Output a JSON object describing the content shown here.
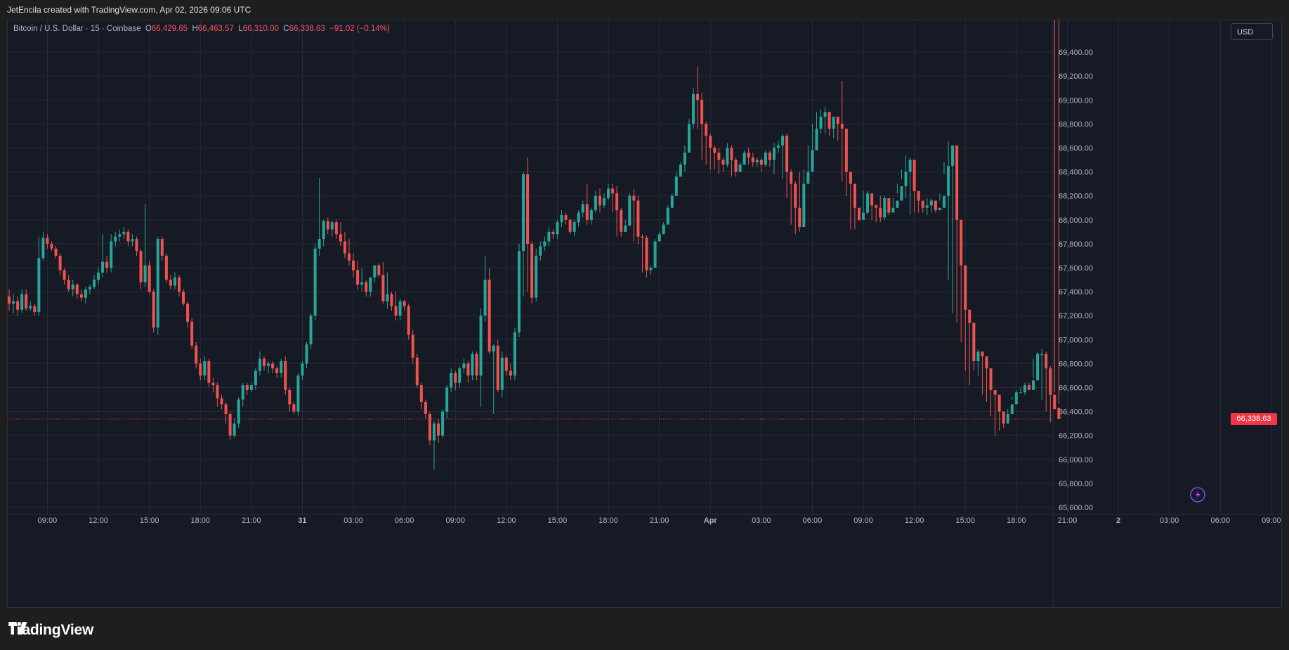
{
  "caption": "JetEncila created with TradingView.com, Apr 02, 2026 09:06 UTC",
  "legend": {
    "symbol": "Bitcoin / U.S. Dollar · 15 · Coinbase",
    "o_label": "O",
    "o_value": "66,429.65",
    "h_label": "H",
    "h_value": "66,463.57",
    "l_label": "L",
    "l_value": "66,310.00",
    "c_label": "C",
    "c_value": "66,338.63",
    "change": "−91.02 (−0.14%)"
  },
  "currency_button": "USD",
  "last_price_label": "66,338.63",
  "brand": "TradingView",
  "colors": {
    "up": "#26a69a",
    "down": "#ef5350",
    "background": "#161a25",
    "grid": "#262b37",
    "last_price": "#f23645"
  },
  "chart_data": {
    "type": "candlestick",
    "title": "Bitcoin / U.S. Dollar · 15 · Coinbase",
    "ylim": [
      65600,
      69600
    ],
    "y_ticks": [
      65600,
      65800,
      66000,
      66200,
      66400,
      66600,
      66800,
      67000,
      67200,
      67400,
      67600,
      67800,
      68000,
      68200,
      68400,
      68600,
      68800,
      69000,
      69200,
      69400
    ],
    "y_tick_labels": [
      "65,600.00",
      "65,800.00",
      "66,000.00",
      "66,200.00",
      "66,400.00",
      "66,600.00",
      "66,800.00",
      "67,000.00",
      "67,200.00",
      "67,400.00",
      "67,600.00",
      "67,800.00",
      "68,000.00",
      "68,200.00",
      "68,400.00",
      "68,600.00",
      "68,800.00",
      "69,000.00",
      "69,200.00",
      "69,400.00"
    ],
    "x_tick_labels": [
      "09:00",
      "12:00",
      "15:00",
      "18:00",
      "21:00",
      "31",
      "03:00",
      "06:00",
      "09:00",
      "12:00",
      "15:00",
      "18:00",
      "21:00",
      "Apr",
      "03:00",
      "06:00",
      "09:00",
      "12:00",
      "15:00",
      "18:00",
      "21:00",
      "2",
      "03:00",
      "06:00",
      "09:00"
    ],
    "x_tick_bar_index": [
      9,
      21,
      33,
      45,
      57,
      69,
      81,
      93,
      105,
      117,
      129,
      141,
      153,
      165,
      177,
      189,
      201,
      213,
      225,
      237,
      249,
      261,
      273,
      285,
      297
    ],
    "bar_interval": "15m",
    "last_price": 66338.63,
    "closes": [
      67300,
      67320,
      67250,
      67380,
      67260,
      67280,
      67230,
      67680,
      67850,
      67800,
      67760,
      67700,
      67580,
      67500,
      67420,
      67460,
      67380,
      67350,
      67420,
      67440,
      67500,
      67560,
      67650,
      67600,
      67820,
      67860,
      67880,
      67900,
      67820,
      67840,
      67740,
      67480,
      67620,
      67400,
      67100,
      67840,
      67700,
      67500,
      67450,
      67520,
      67400,
      67300,
      67150,
      66950,
      66800,
      66700,
      66820,
      66640,
      66620,
      66510,
      66460,
      66380,
      66200,
      66300,
      66500,
      66620,
      66580,
      66620,
      66740,
      66840,
      66780,
      66800,
      66760,
      66720,
      66820,
      66580,
      66460,
      66400,
      66700,
      66800,
      66960,
      67200,
      67760,
      67840,
      67990,
      67920,
      67980,
      67880,
      67820,
      67720,
      67660,
      67580,
      67460,
      67480,
      67400,
      67520,
      67620,
      67540,
      67320,
      67380,
      67280,
      67200,
      67320,
      67280,
      67040,
      66850,
      66620,
      66480,
      66380,
      66160,
      66300,
      66200,
      66400,
      66600,
      66720,
      66640,
      66760,
      66800,
      66700,
      66880,
      66700,
      67200,
      67500,
      66900,
      66950,
      66580,
      66850,
      66740,
      66700,
      67060,
      67740,
      68380,
      67800,
      67350,
      67700,
      67780,
      67820,
      67900,
      67880,
      67980,
      68040,
      68000,
      67900,
      67980,
      68060,
      68130,
      68000,
      68080,
      68200,
      68120,
      68180,
      68260,
      68220,
      68080,
      67900,
      67950,
      68200,
      68160,
      67860,
      67850,
      67580,
      67600,
      67820,
      67880,
      67960,
      68100,
      68200,
      68360,
      68460,
      68560,
      68800,
      69050,
      69000,
      68800,
      68700,
      68600,
      68560,
      68500,
      68460,
      68600,
      68500,
      68400,
      68460,
      68560,
      68520,
      68480,
      68500,
      68460,
      68560,
      68500,
      68600,
      68620,
      68700,
      68400,
      68300,
      68100,
      67940,
      68300,
      68400,
      68580,
      68760,
      68860,
      68900,
      68760,
      68860,
      68800,
      68760,
      68400,
      68300,
      68100,
      68000,
      68060,
      68220,
      68120,
      68100,
      68020,
      68180,
      68060,
      68100,
      68160,
      68280,
      68400,
      68500,
      68240,
      68160,
      68100,
      68120,
      68160,
      68080,
      68100,
      68200,
      68450,
      68620,
      68000,
      67620,
      67250,
      67140,
      66820,
      66900,
      66860,
      66760,
      66580,
      66540,
      66400,
      66300,
      66380,
      66460,
      66560,
      66560,
      66620,
      66580,
      66660,
      66880,
      66880,
      66760,
      66540,
      66420,
      66338.63
    ],
    "opens": [
      67360,
      67300,
      67320,
      67250,
      67380,
      67260,
      67280,
      67230,
      67680,
      67850,
      67800,
      67760,
      67700,
      67580,
      67500,
      67420,
      67460,
      67380,
      67350,
      67420,
      67440,
      67500,
      67560,
      67650,
      67600,
      67820,
      67860,
      67880,
      67900,
      67820,
      67840,
      67740,
      67480,
      67620,
      67400,
      67100,
      67840,
      67700,
      67500,
      67450,
      67520,
      67400,
      67300,
      67150,
      66950,
      66800,
      66700,
      66820,
      66640,
      66620,
      66510,
      66460,
      66380,
      66200,
      66300,
      66500,
      66620,
      66580,
      66620,
      66740,
      66840,
      66780,
      66800,
      66760,
      66720,
      66820,
      66580,
      66460,
      66400,
      66700,
      66800,
      66960,
      67200,
      67760,
      67840,
      67990,
      67920,
      67980,
      67880,
      67820,
      67720,
      67660,
      67580,
      67460,
      67480,
      67400,
      67520,
      67620,
      67540,
      67320,
      67380,
      67280,
      67200,
      67320,
      67280,
      67040,
      66850,
      66620,
      66480,
      66380,
      66160,
      66300,
      66200,
      66400,
      66600,
      66720,
      66640,
      66760,
      66800,
      66700,
      66880,
      66700,
      67200,
      67500,
      66900,
      66950,
      66580,
      66850,
      66740,
      66700,
      67060,
      67740,
      68380,
      67800,
      67350,
      67700,
      67780,
      67820,
      67900,
      67880,
      67980,
      68040,
      68000,
      67900,
      67980,
      68060,
      68130,
      68000,
      68080,
      68200,
      68120,
      68180,
      68260,
      68220,
      68080,
      67900,
      67950,
      68200,
      68160,
      67860,
      67850,
      67580,
      67600,
      67820,
      67880,
      67960,
      68100,
      68200,
      68360,
      68460,
      68560,
      68800,
      69050,
      69000,
      68800,
      68700,
      68600,
      68560,
      68500,
      68460,
      68600,
      68500,
      68400,
      68460,
      68560,
      68520,
      68480,
      68500,
      68460,
      68560,
      68500,
      68600,
      68620,
      68700,
      68400,
      68300,
      68100,
      67940,
      68300,
      68400,
      68580,
      68760,
      68860,
      68900,
      68760,
      68860,
      68800,
      68760,
      68400,
      68300,
      68100,
      68000,
      68060,
      68220,
      68120,
      68100,
      68020,
      68180,
      68060,
      68100,
      68160,
      68280,
      68400,
      68500,
      68240,
      68160,
      68100,
      68120,
      68160,
      68080,
      68100,
      68200,
      68450,
      68620,
      68000,
      67620,
      67250,
      67140,
      66820,
      66900,
      66860,
      66760,
      66580,
      66540,
      66400,
      66300,
      66380,
      66460,
      66560,
      66560,
      66620,
      66580,
      66660,
      66880,
      66880,
      66760,
      66540,
      66429.65
    ],
    "highs": [
      67420,
      67380,
      67360,
      67420,
      67420,
      67320,
      67300,
      67860,
      67900,
      67880,
      67820,
      67780,
      67720,
      67600,
      67540,
      67500,
      67470,
      67420,
      67440,
      67460,
      67540,
      67600,
      67880,
      67700,
      67880,
      67900,
      67920,
      67940,
      67920,
      67880,
      67860,
      67760,
      68130,
      67660,
      67420,
      67860,
      67860,
      67720,
      67540,
      67560,
      67540,
      67420,
      67320,
      67180,
      66980,
      66840,
      66860,
      66840,
      66680,
      66640,
      66540,
      66480,
      66400,
      66340,
      66520,
      66640,
      66640,
      66640,
      66760,
      66900,
      66860,
      66820,
      66820,
      66780,
      66840,
      66860,
      66600,
      66480,
      66720,
      66820,
      66980,
      67220,
      67800,
      68350,
      68000,
      68020,
      67990,
      68000,
      67980,
      67900,
      67840,
      67720,
      67660,
      67600,
      67500,
      67500,
      67540,
      67640,
      67650,
      67560,
      67400,
      67400,
      67340,
      67330,
      67300,
      67080,
      66880,
      66640,
      66500,
      66400,
      66320,
      66340,
      66420,
      66620,
      66760,
      66740,
      66780,
      66840,
      66820,
      66900,
      66900,
      67260,
      67700,
      67600,
      66960,
      67000,
      66900,
      66860,
      66800,
      67100,
      67800,
      68400,
      68520,
      67820,
      67760,
      67820,
      67860,
      67940,
      67920,
      68000,
      68080,
      68060,
      68010,
      68000,
      68080,
      68160,
      68300,
      68100,
      68240,
      68260,
      68220,
      68300,
      68300,
      68280,
      68100,
      68000,
      68220,
      68260,
      68200,
      67880,
      67870,
      67620,
      67840,
      67900,
      67980,
      68120,
      68220,
      68400,
      68480,
      68620,
      68840,
      69100,
      69280,
      69060,
      68820,
      68720,
      68620,
      68600,
      68520,
      68640,
      68620,
      68520,
      68480,
      68580,
      68600,
      68560,
      68520,
      68520,
      68580,
      68580,
      68640,
      68660,
      68720,
      68720,
      68420,
      68320,
      68400,
      68420,
      68620,
      68800,
      68900,
      68920,
      68940,
      68900,
      68860,
      68840,
      69160,
      68460,
      68340,
      68140,
      68100,
      68240,
      68240,
      68180,
      68130,
      68200,
      68200,
      68120,
      68180,
      68300,
      68420,
      68540,
      68520,
      68260,
      68200,
      68160,
      68180,
      68180,
      68120,
      68220,
      68480,
      68660,
      68620,
      68020,
      67660,
      67260,
      67180,
      66860,
      66920,
      66900,
      66800,
      66600,
      66560,
      66420,
      66340,
      66420,
      66500,
      66580,
      66600,
      66640,
      66640,
      66680,
      66900,
      66920,
      66900,
      66780,
      66560,
      66463.57
    ],
    "lows": [
      67240,
      67220,
      67200,
      67220,
      67240,
      67240,
      67200,
      67200,
      67660,
      67760,
      67740,
      67680,
      67540,
      67460,
      67400,
      67360,
      67340,
      67320,
      67300,
      67380,
      67420,
      67460,
      67520,
      67560,
      67560,
      67780,
      67820,
      67840,
      67780,
      67780,
      67700,
      67420,
      67440,
      67380,
      67060,
      67040,
      67660,
      67480,
      67420,
      67420,
      67360,
      67280,
      67100,
      66920,
      66760,
      66660,
      66660,
      66600,
      66560,
      66440,
      66420,
      66300,
      66160,
      66180,
      66260,
      66440,
      66540,
      66560,
      66580,
      66700,
      66740,
      66720,
      66720,
      66680,
      66680,
      66540,
      66400,
      66380,
      66360,
      66660,
      66760,
      66920,
      67160,
      67700,
      67780,
      67880,
      67860,
      67840,
      67780,
      67680,
      67620,
      67520,
      67420,
      67400,
      67360,
      67360,
      67480,
      67520,
      67300,
      67260,
      67240,
      67160,
      67160,
      67240,
      67000,
      66800,
      66600,
      66420,
      66340,
      66120,
      65920,
      66140,
      66180,
      66340,
      66560,
      66580,
      66600,
      66720,
      66640,
      66660,
      66660,
      66440,
      67150,
      66880,
      66380,
      66560,
      66520,
      66700,
      66660,
      66660,
      67020,
      67360,
      67400,
      67300,
      67320,
      67660,
      67740,
      67780,
      67840,
      67840,
      67940,
      67960,
      67880,
      67860,
      67940,
      68020,
      67960,
      67960,
      68060,
      68060,
      68100,
      68160,
      68060,
      67860,
      67860,
      67900,
      68120,
      67820,
      67800,
      67560,
      67520,
      67540,
      67780,
      67840,
      67920,
      68060,
      68160,
      68320,
      68420,
      68400,
      68640,
      68760,
      68760,
      68500,
      68460,
      68420,
      68420,
      68380,
      68400,
      68440,
      68360,
      68360,
      68400,
      68460,
      68460,
      68440,
      68440,
      68400,
      68440,
      68440,
      68380,
      68560,
      68340,
      68180,
      67960,
      67880,
      67900,
      68280,
      68360,
      68540,
      68700,
      68720,
      68720,
      68700,
      68680,
      68660,
      68320,
      68200,
      67920,
      67920,
      67990,
      68020,
      68040,
      68000,
      67980,
      67980,
      68000,
      68040,
      68060,
      68220,
      68340,
      68180,
      68040,
      68060,
      68060,
      68060,
      68040,
      68060,
      68060,
      68160,
      68380,
      67500,
      67220,
      67140,
      66980,
      66740,
      66620,
      66740,
      66700,
      66540,
      66480,
      66360,
      66200,
      66240,
      66260,
      66380,
      66520,
      66520,
      66560,
      66540,
      66620,
      66840,
      66700,
      66500,
      66400,
      66310
    ]
  }
}
